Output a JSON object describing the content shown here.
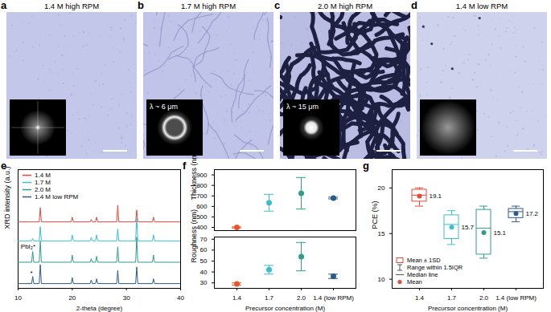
{
  "images": [
    {
      "panel": "a",
      "title": "1.4 M high RPM"
    },
    {
      "panel": "b",
      "title": "1.7 M high RPM",
      "inset_label": "λ ~ 6 μm"
    },
    {
      "panel": "c",
      "title": "2.0 M high RPM",
      "inset_label": "λ ~ 15 μm"
    },
    {
      "panel": "d",
      "title": "1.4 M low RPM"
    }
  ],
  "chart_data": [
    {
      "panel": "e",
      "type": "line",
      "x_label": "2-theta (degree)",
      "y_label": "XRD intensity (a.u.)",
      "x": [
        10,
        12.5,
        12.7,
        12.9,
        13.9,
        14.1,
        14.3,
        19.8,
        20.0,
        20.2,
        23.3,
        23.5,
        23.7,
        24.3,
        24.5,
        24.7,
        28.2,
        28.4,
        28.6,
        31.7,
        31.9,
        32.1,
        34.8,
        35.0,
        35.2,
        40
      ],
      "xlim": [
        10,
        40
      ],
      "xticks": [
        10,
        20,
        30,
        40
      ],
      "ylim": [
        0,
        100
      ],
      "tick_labels": "x",
      "legend": "top-left",
      "series": [
        {
          "name": "1.4 M",
          "color": "#e8483a",
          "values": [
            56,
            56,
            56,
            56,
            56,
            68,
            56,
            56,
            60,
            56,
            56,
            58,
            56,
            56,
            60,
            56,
            56,
            70,
            56,
            56,
            66,
            56,
            56,
            60,
            56,
            56
          ]
        },
        {
          "name": "1.7 M",
          "color": "#3bbfcf",
          "values": [
            40,
            40,
            42,
            40,
            40,
            52,
            40,
            40,
            45,
            40,
            40,
            43,
            40,
            40,
            45,
            40,
            40,
            50,
            40,
            40,
            60,
            40,
            40,
            45,
            40,
            40
          ]
        },
        {
          "name": "2.0 M",
          "color": "#2e9e8a",
          "values": [
            22,
            22,
            31,
            22,
            22,
            40,
            22,
            22,
            28,
            22,
            22,
            25,
            22,
            22,
            27,
            22,
            22,
            35,
            22,
            22,
            43,
            22,
            22,
            28,
            22,
            22
          ]
        },
        {
          "name": "1.4 M low RPM",
          "color": "#2d5a8c",
          "values": [
            4,
            4,
            10,
            4,
            4,
            20,
            4,
            4,
            9,
            4,
            4,
            7,
            4,
            4,
            8,
            4,
            4,
            15,
            4,
            4,
            18,
            4,
            4,
            8,
            4,
            4
          ]
        }
      ],
      "annotations": [
        {
          "text": "PbI₂*",
          "x": 13.2,
          "y": 35.5
        },
        {
          "text": "*",
          "x": 12.7,
          "y": 13
        }
      ]
    },
    {
      "panel": "f",
      "type": "scatter",
      "y_label": "Thickness (nm)",
      "categories": [
        "1.4",
        "1.7",
        "2.0",
        "1.4 (low RPM)"
      ],
      "values": [
        400,
        635,
        725,
        680
      ],
      "errors": [
        5,
        80,
        150,
        8
      ],
      "colors": [
        "#e8572a",
        "#3bbfcf",
        "#2e9e8a",
        "#2d5a8c"
      ],
      "ylim": [
        370,
        950
      ],
      "yticks": [
        400,
        500,
        600,
        700,
        800,
        900
      ],
      "tick_labels": "y"
    },
    {
      "type": "scatter",
      "x_label": "Precursor concentration (M)",
      "y_label": "Roughness (nm)",
      "categories": [
        "1.4",
        "1.7",
        "2.0",
        "1.4 (low RPM)"
      ],
      "values": [
        29,
        42,
        54,
        36
      ],
      "errors": [
        1,
        4,
        13,
        2
      ],
      "colors": [
        "#e8572a",
        "#3bbfcf",
        "#2e9e8a",
        "#2d5a8c"
      ],
      "ylim": [
        25,
        72
      ],
      "yticks": [
        30,
        40,
        50,
        60,
        70
      ]
    },
    {
      "panel": "g",
      "type": "box",
      "x_label": "Precursor concentration (M)",
      "y_label": "PCE (%)",
      "categories": [
        "1.4",
        "1.7",
        "2.0",
        "1.4 (low RPM)"
      ],
      "values": [
        19.1,
        15.7,
        15.1,
        17.2
      ],
      "medians": [
        19.2,
        16.0,
        15.6,
        17.4
      ],
      "box_low": [
        18.5,
        14.4,
        12.7,
        16.7
      ],
      "box_high": [
        19.8,
        17.0,
        17.6,
        17.7
      ],
      "whisker_low": [
        18.0,
        13.8,
        12.3,
        16.3
      ],
      "whisker_high": [
        20.0,
        17.5,
        18.0,
        18.0
      ],
      "colors": [
        "#e8483a",
        "#3bbfcf",
        "#2e9e8a",
        "#2d5a8c"
      ],
      "ylim": [
        9,
        22
      ],
      "yticks": [
        10,
        15,
        20
      ],
      "data_labels": true,
      "legend": "bottom-left",
      "legend_entries": [
        "Mean ± 1SD",
        "Range within 1.5IQR",
        "Median line",
        "Mean"
      ]
    }
  ]
}
